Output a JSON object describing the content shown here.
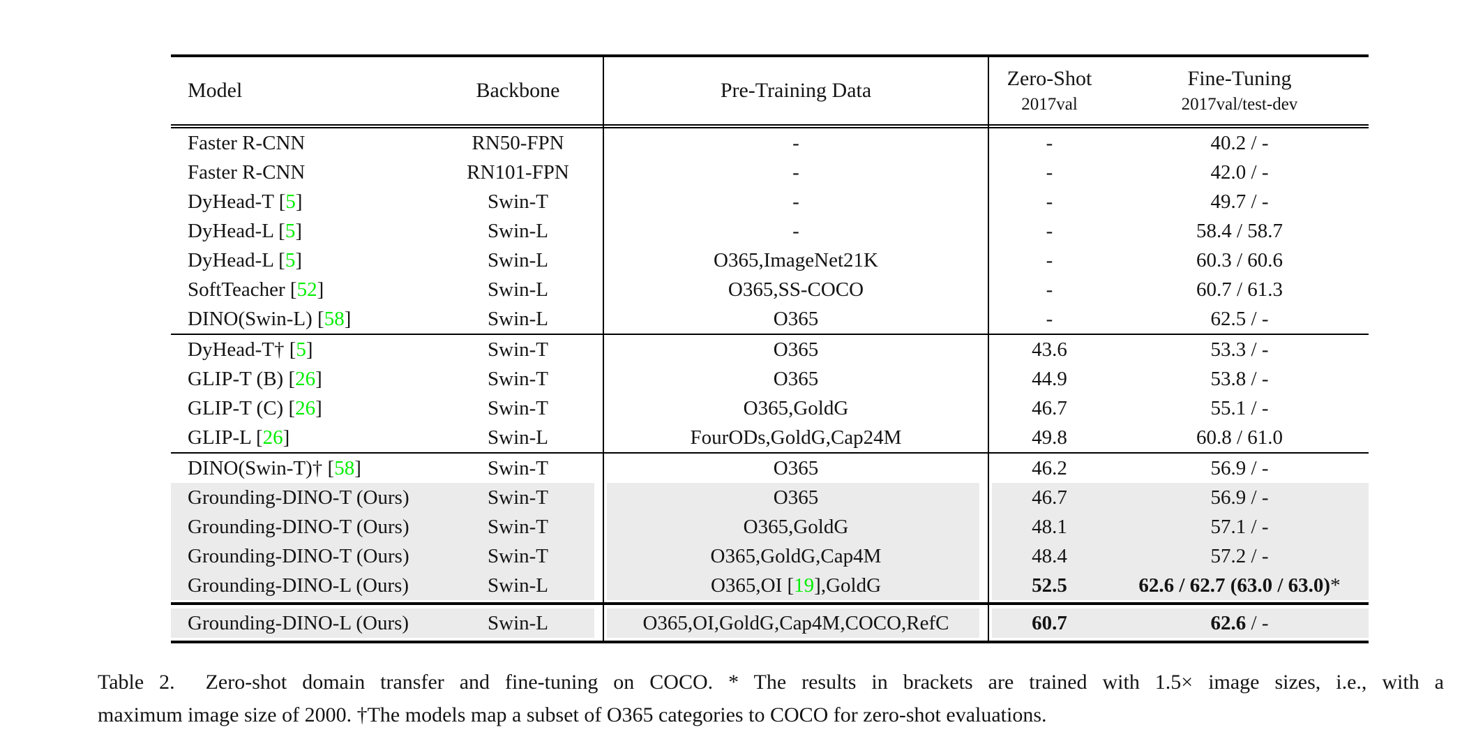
{
  "colors": {
    "citation_green": "#00ee00",
    "highlight_gray": "#ebebeb",
    "rule_black": "#000000",
    "page_background": "#ffffff"
  },
  "table": {
    "headers": {
      "model": "Model",
      "backbone": "Backbone",
      "pretraining": "Pre-Training Data",
      "zero_shot_line1": "Zero-Shot",
      "zero_shot_line2": "2017val",
      "fine_tuning_line1": "Fine-Tuning",
      "fine_tuning_line2": "2017val/test-dev"
    },
    "sections": [
      {
        "rows": [
          {
            "model": "Faster R-CNN",
            "backbone": "RN50-FPN",
            "pretrain": "-",
            "zero_shot": "-",
            "fine_tuning": "40.2 / -",
            "highlight": false
          },
          {
            "model": "Faster R-CNN",
            "backbone": "RN101-FPN",
            "pretrain": "-",
            "zero_shot": "-",
            "fine_tuning": "42.0 / -",
            "highlight": false
          },
          {
            "model": "DyHead-T [5]",
            "backbone": "Swin-T",
            "pretrain": "-",
            "zero_shot": "-",
            "fine_tuning": "49.7 / -",
            "highlight": false
          },
          {
            "model": "DyHead-L [5]",
            "backbone": "Swin-L",
            "pretrain": "-",
            "zero_shot": "-",
            "fine_tuning": "58.4 / 58.7",
            "highlight": false
          },
          {
            "model": "DyHead-L [5]",
            "backbone": "Swin-L",
            "pretrain": "O365,ImageNet21K",
            "zero_shot": "-",
            "fine_tuning": "60.3 / 60.6",
            "highlight": false
          },
          {
            "model": "SoftTeacher [52]",
            "backbone": "Swin-L",
            "pretrain": "O365,SS-COCO",
            "zero_shot": "-",
            "fine_tuning": "60.7 / 61.3",
            "highlight": false
          },
          {
            "model": "DINO(Swin-L) [58]",
            "backbone": "Swin-L",
            "pretrain": "O365",
            "zero_shot": "-",
            "fine_tuning": "62.5 / -",
            "highlight": false
          }
        ]
      },
      {
        "rows": [
          {
            "model": "DyHead-T† [5]",
            "backbone": "Swin-T",
            "pretrain": "O365",
            "zero_shot": "43.6",
            "fine_tuning": "53.3 / -",
            "highlight": false
          },
          {
            "model": "GLIP-T (B) [26]",
            "backbone": "Swin-T",
            "pretrain": "O365",
            "zero_shot": "44.9",
            "fine_tuning": "53.8 / -",
            "highlight": false
          },
          {
            "model": "GLIP-T (C) [26]",
            "backbone": "Swin-T",
            "pretrain": "O365,GoldG",
            "zero_shot": "46.7",
            "fine_tuning": "55.1 / -",
            "highlight": false
          },
          {
            "model": "GLIP-L [26]",
            "backbone": "Swin-L",
            "pretrain": "FourODs,GoldG,Cap24M",
            "zero_shot": "49.8",
            "fine_tuning": "60.8 / 61.0",
            "highlight": false
          }
        ]
      },
      {
        "rows": [
          {
            "model": "DINO(Swin-T)† [58]",
            "backbone": "Swin-T",
            "pretrain": "O365",
            "zero_shot": "46.2",
            "fine_tuning": "56.9 / -",
            "highlight": false
          },
          {
            "model": "Grounding-DINO-T (Ours)",
            "backbone": "Swin-T",
            "pretrain": "O365",
            "zero_shot": "46.7",
            "fine_tuning": "56.9 / -",
            "highlight": true
          },
          {
            "model": "Grounding-DINO-T (Ours)",
            "backbone": "Swin-T",
            "pretrain": "O365,GoldG",
            "zero_shot": "48.1",
            "fine_tuning": "57.1 / -",
            "highlight": true
          },
          {
            "model": "Grounding-DINO-T (Ours)",
            "backbone": "Swin-T",
            "pretrain": "O365,GoldG,Cap4M",
            "zero_shot": "48.4",
            "fine_tuning": "57.2 / -",
            "highlight": true
          },
          {
            "model": "Grounding-DINO-L (Ours)",
            "backbone": "Swin-L",
            "pretrain": "O365,OI [19],GoldG",
            "zero_shot": [
              {
                "t": "52.5",
                "b": true
              }
            ],
            "fine_tuning": [
              {
                "t": "62.6 / 62.7 (63.0 / 63.0)",
                "b": true
              },
              {
                "t": "*",
                "b": false
              }
            ],
            "highlight": true
          }
        ]
      },
      {
        "rows": [
          {
            "model": "Grounding-DINO-L (Ours)",
            "backbone": "Swin-L",
            "pretrain": "O365,OI,GoldG,Cap4M,COCO,RefC",
            "zero_shot": [
              {
                "t": "60.7",
                "b": true
              }
            ],
            "fine_tuning": [
              {
                "t": "62.6",
                "b": true
              },
              {
                "t": " / -",
                "b": false
              }
            ],
            "highlight": true
          }
        ]
      }
    ]
  },
  "caption": {
    "line1": "Table 2.  Zero-shot domain transfer and fine-tuning on COCO. * The results in brackets are trained with 1.5× image sizes, i.e., with a",
    "line2": "maximum image size of 2000. †The models map a subset of O365 categories to COCO for zero-shot evaluations."
  }
}
